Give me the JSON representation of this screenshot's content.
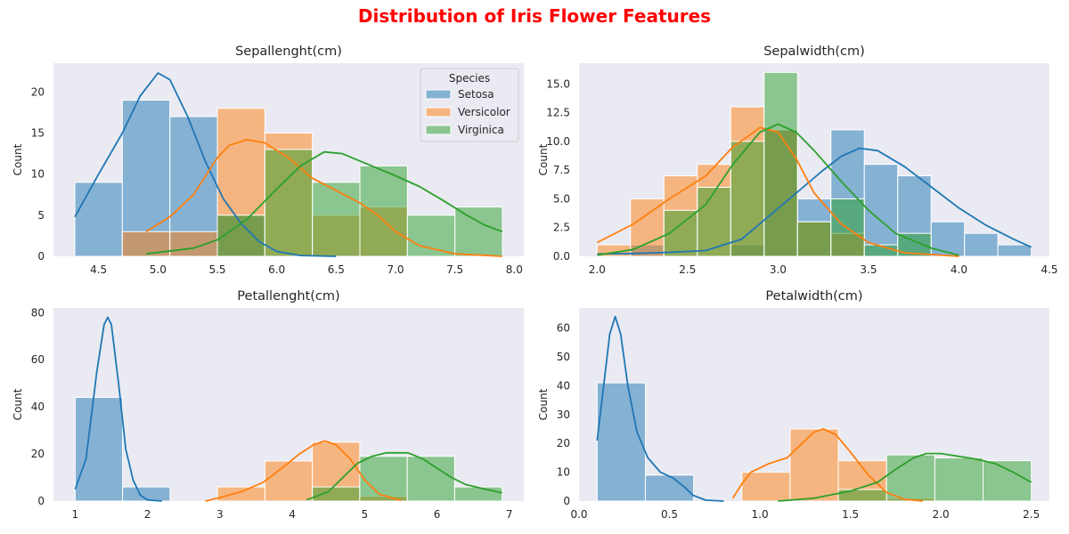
{
  "figure": {
    "title": "Distribution of Iris Flower Features",
    "title_color": "#ff0000",
    "plot_background": "#eaeaf2"
  },
  "legend": {
    "title": "Species",
    "placement": "upper-right of first subplot"
  },
  "chart_data": [
    {
      "type": "histogram",
      "title": "Sepallenght(cm)",
      "xlabel": "",
      "ylabel": "Count",
      "xlim": [
        4.12,
        8.08
      ],
      "ylim": [
        0,
        23.5
      ],
      "xticks": [
        "4.5",
        "5.0",
        "5.5",
        "6.0",
        "6.5",
        "7.0",
        "7.5",
        "8.0"
      ],
      "yticks": [
        "0",
        "5",
        "10",
        "15",
        "20"
      ],
      "grid": false,
      "legend": true,
      "bin_edges": [
        4.3,
        4.7,
        5.1,
        5.5,
        5.9,
        6.3,
        6.7,
        7.1,
        7.5,
        7.9
      ],
      "series": [
        {
          "name": "Setosa",
          "color": "#1f77b4",
          "counts": [
            9,
            19,
            17,
            5,
            0,
            0,
            0,
            0,
            0
          ],
          "kde": [
            [
              4.3,
              4.8
            ],
            [
              4.5,
              10
            ],
            [
              4.7,
              15
            ],
            [
              4.85,
              19.5
            ],
            [
              5.0,
              22.3
            ],
            [
              5.1,
              21.5
            ],
            [
              5.25,
              17
            ],
            [
              5.4,
              11.5
            ],
            [
              5.55,
              7
            ],
            [
              5.7,
              4
            ],
            [
              5.85,
              1.8
            ],
            [
              6.0,
              0.6
            ],
            [
              6.2,
              0.1
            ],
            [
              6.5,
              0
            ]
          ]
        },
        {
          "name": "Versicolor",
          "color": "#ff7f0e",
          "counts": [
            0,
            3,
            3,
            18,
            15,
            5,
            6,
            0,
            0
          ],
          "kde": [
            [
              4.9,
              3
            ],
            [
              5.1,
              4.8
            ],
            [
              5.3,
              7.5
            ],
            [
              5.5,
              12
            ],
            [
              5.6,
              13.5
            ],
            [
              5.75,
              14.2
            ],
            [
              5.9,
              13.8
            ],
            [
              6.1,
              12
            ],
            [
              6.3,
              9.5
            ],
            [
              6.5,
              8
            ],
            [
              6.7,
              6.5
            ],
            [
              6.85,
              5
            ],
            [
              7.0,
              3
            ],
            [
              7.2,
              1.3
            ],
            [
              7.5,
              0.3
            ],
            [
              7.9,
              0
            ]
          ]
        },
        {
          "name": "Virginica",
          "color": "#2ca02c",
          "counts": [
            0,
            0,
            0,
            5,
            13,
            9,
            11,
            5,
            6
          ],
          "kde": [
            [
              4.9,
              0.3
            ],
            [
              5.3,
              1
            ],
            [
              5.5,
              2
            ],
            [
              5.75,
              4.5
            ],
            [
              6.0,
              8.2
            ],
            [
              6.2,
              11
            ],
            [
              6.4,
              12.7
            ],
            [
              6.55,
              12.5
            ],
            [
              6.8,
              11
            ],
            [
              7.0,
              9.8
            ],
            [
              7.2,
              8.5
            ],
            [
              7.4,
              6.8
            ],
            [
              7.6,
              5
            ],
            [
              7.75,
              3.8
            ],
            [
              7.9,
              3
            ]
          ]
        }
      ]
    },
    {
      "type": "histogram",
      "title": "Sepalwidth(cm)",
      "xlabel": "",
      "ylabel": "Count",
      "xlim": [
        1.9,
        4.5
      ],
      "ylim": [
        0,
        16.8
      ],
      "xticks": [
        "2.0",
        "2.5",
        "3.0",
        "3.5",
        "4.0",
        "4.5"
      ],
      "yticks": [
        "0.0",
        "2.5",
        "5.0",
        "7.5",
        "10.0",
        "12.5",
        "15.0"
      ],
      "grid": false,
      "legend": false,
      "bin_edges": [
        2.0,
        2.1846,
        2.3692,
        2.5538,
        2.7385,
        2.9231,
        3.1077,
        3.2923,
        3.4769,
        3.6615,
        3.8462,
        4.0308,
        4.2154,
        4.4
      ],
      "series": [
        {
          "name": "Setosa",
          "color": "#1f77b4",
          "counts": [
            0,
            1,
            0,
            0,
            1,
            11,
            5,
            11,
            8,
            7,
            3,
            2,
            1
          ],
          "kde": [
            [
              2.0,
              0.2
            ],
            [
              2.2,
              0.25
            ],
            [
              2.4,
              0.35
            ],
            [
              2.6,
              0.5
            ],
            [
              2.8,
              1.5
            ],
            [
              2.95,
              3.5
            ],
            [
              3.1,
              5.5
            ],
            [
              3.25,
              7.5
            ],
            [
              3.35,
              8.7
            ],
            [
              3.45,
              9.4
            ],
            [
              3.55,
              9.2
            ],
            [
              3.7,
              7.8
            ],
            [
              3.85,
              6
            ],
            [
              4.0,
              4.2
            ],
            [
              4.15,
              2.7
            ],
            [
              4.3,
              1.5
            ],
            [
              4.4,
              0.8
            ]
          ]
        },
        {
          "name": "Versicolor",
          "color": "#ff7f0e",
          "counts": [
            1,
            5,
            7,
            8,
            13,
            11,
            3,
            2,
            0,
            0,
            0,
            0,
            0
          ],
          "kde": [
            [
              2.0,
              1.2
            ],
            [
              2.2,
              2.8
            ],
            [
              2.4,
              5
            ],
            [
              2.6,
              7
            ],
            [
              2.75,
              9.5
            ],
            [
              2.9,
              11.2
            ],
            [
              3.0,
              10.8
            ],
            [
              3.1,
              8.5
            ],
            [
              3.2,
              5.5
            ],
            [
              3.35,
              2.8
            ],
            [
              3.5,
              1.2
            ],
            [
              3.7,
              0.3
            ],
            [
              4.0,
              0
            ]
          ]
        },
        {
          "name": "Virginica",
          "color": "#2ca02c",
          "counts": [
            0,
            0,
            4,
            6,
            10,
            16,
            3,
            5,
            1,
            2,
            0,
            0,
            0
          ],
          "kde": [
            [
              2.0,
              0.1
            ],
            [
              2.2,
              0.6
            ],
            [
              2.4,
              2
            ],
            [
              2.6,
              4.5
            ],
            [
              2.75,
              8
            ],
            [
              2.9,
              10.8
            ],
            [
              3.0,
              11.5
            ],
            [
              3.1,
              10.8
            ],
            [
              3.2,
              9.2
            ],
            [
              3.35,
              6.5
            ],
            [
              3.5,
              4
            ],
            [
              3.65,
              2
            ],
            [
              3.85,
              0.7
            ],
            [
              4.0,
              0.1
            ]
          ]
        }
      ]
    },
    {
      "type": "histogram",
      "title": "Petallenght(cm)",
      "xlabel": "",
      "ylabel": "Count",
      "xlim": [
        0.7,
        7.2
      ],
      "ylim": [
        0,
        82
      ],
      "xticks": [
        "1",
        "2",
        "3",
        "4",
        "5",
        "6",
        "7"
      ],
      "yticks": [
        "0",
        "20",
        "40",
        "60",
        "80"
      ],
      "grid": false,
      "legend": false,
      "bin_edges": [
        1.0,
        1.6556,
        2.3111,
        2.9667,
        3.6222,
        4.2778,
        4.9333,
        5.5889,
        6.2444,
        6.9
      ],
      "series": [
        {
          "name": "Setosa",
          "color": "#1f77b4",
          "counts": [
            44,
            6,
            0,
            0,
            0,
            0,
            0,
            0,
            0
          ],
          "kde": [
            [
              1.0,
              5
            ],
            [
              1.15,
              18
            ],
            [
              1.3,
              55
            ],
            [
              1.4,
              75
            ],
            [
              1.45,
              78
            ],
            [
              1.5,
              75
            ],
            [
              1.6,
              50
            ],
            [
              1.7,
              22
            ],
            [
              1.8,
              9
            ],
            [
              1.9,
              2.5
            ],
            [
              2.0,
              0.5
            ],
            [
              2.2,
              0
            ]
          ]
        },
        {
          "name": "Versicolor",
          "color": "#ff7f0e",
          "counts": [
            0,
            0,
            0,
            6,
            17,
            25,
            2,
            0,
            0
          ],
          "kde": [
            [
              2.8,
              0
            ],
            [
              3.0,
              1.5
            ],
            [
              3.3,
              4
            ],
            [
              3.6,
              8
            ],
            [
              3.9,
              15
            ],
            [
              4.1,
              20
            ],
            [
              4.3,
              24
            ],
            [
              4.45,
              25.5
            ],
            [
              4.6,
              24
            ],
            [
              4.8,
              18
            ],
            [
              5.0,
              9
            ],
            [
              5.2,
              3
            ],
            [
              5.5,
              0.3
            ]
          ]
        },
        {
          "name": "Virginica",
          "color": "#2ca02c",
          "counts": [
            0,
            0,
            0,
            0,
            0,
            6,
            19,
            19,
            6
          ],
          "kde": [
            [
              4.2,
              0.5
            ],
            [
              4.5,
              4
            ],
            [
              4.7,
              10
            ],
            [
              4.9,
              16
            ],
            [
              5.1,
              19
            ],
            [
              5.3,
              20.5
            ],
            [
              5.6,
              20.5
            ],
            [
              5.8,
              18
            ],
            [
              6.0,
              14
            ],
            [
              6.2,
              10
            ],
            [
              6.4,
              7
            ],
            [
              6.6,
              5.5
            ],
            [
              6.9,
              3.5
            ]
          ]
        }
      ]
    },
    {
      "type": "histogram",
      "title": "Petalwidth(cm)",
      "xlabel": "",
      "ylabel": "Count",
      "xlim": [
        0.0,
        2.6
      ],
      "ylim": [
        0,
        67
      ],
      "xticks": [
        "0.0",
        "0.5",
        "1.0",
        "1.5",
        "2.0",
        "2.5"
      ],
      "yticks": [
        "0",
        "10",
        "20",
        "30",
        "40",
        "50",
        "60"
      ],
      "grid": false,
      "legend": false,
      "bin_edges": [
        0.1,
        0.3667,
        0.6333,
        0.9,
        1.1667,
        1.4333,
        1.7,
        1.9667,
        2.2333,
        2.5
      ],
      "series": [
        {
          "name": "Setosa",
          "color": "#1f77b4",
          "counts": [
            41,
            9,
            0,
            0,
            0,
            0,
            0,
            0,
            0
          ],
          "kde": [
            [
              0.1,
              21
            ],
            [
              0.14,
              42
            ],
            [
              0.17,
              58
            ],
            [
              0.2,
              64
            ],
            [
              0.23,
              58
            ],
            [
              0.27,
              40
            ],
            [
              0.32,
              24
            ],
            [
              0.38,
              15
            ],
            [
              0.45,
              10
            ],
            [
              0.52,
              8
            ],
            [
              0.58,
              5
            ],
            [
              0.63,
              2
            ],
            [
              0.7,
              0.3
            ],
            [
              0.8,
              0
            ]
          ]
        },
        {
          "name": "Versicolor",
          "color": "#ff7f0e",
          "counts": [
            0,
            0,
            0,
            10,
            25,
            14,
            1,
            0,
            0
          ],
          "kde": [
            [
              0.85,
              1
            ],
            [
              0.9,
              6
            ],
            [
              0.95,
              10
            ],
            [
              1.05,
              13
            ],
            [
              1.15,
              15
            ],
            [
              1.25,
              21
            ],
            [
              1.3,
              24
            ],
            [
              1.35,
              25
            ],
            [
              1.42,
              23
            ],
            [
              1.5,
              17
            ],
            [
              1.6,
              9
            ],
            [
              1.7,
              3
            ],
            [
              1.8,
              0.6
            ],
            [
              1.9,
              0
            ]
          ]
        },
        {
          "name": "Virginica",
          "color": "#2ca02c",
          "counts": [
            0,
            0,
            0,
            0,
            0,
            4,
            16,
            15,
            14
          ],
          "kde": [
            [
              1.1,
              0
            ],
            [
              1.3,
              1
            ],
            [
              1.5,
              3.5
            ],
            [
              1.65,
              6.5
            ],
            [
              1.75,
              11
            ],
            [
              1.85,
              15
            ],
            [
              1.92,
              16.5
            ],
            [
              2.0,
              16.5
            ],
            [
              2.1,
              15.5
            ],
            [
              2.2,
              14.5
            ],
            [
              2.3,
              13
            ],
            [
              2.4,
              10
            ],
            [
              2.5,
              6.5
            ]
          ]
        }
      ]
    }
  ]
}
